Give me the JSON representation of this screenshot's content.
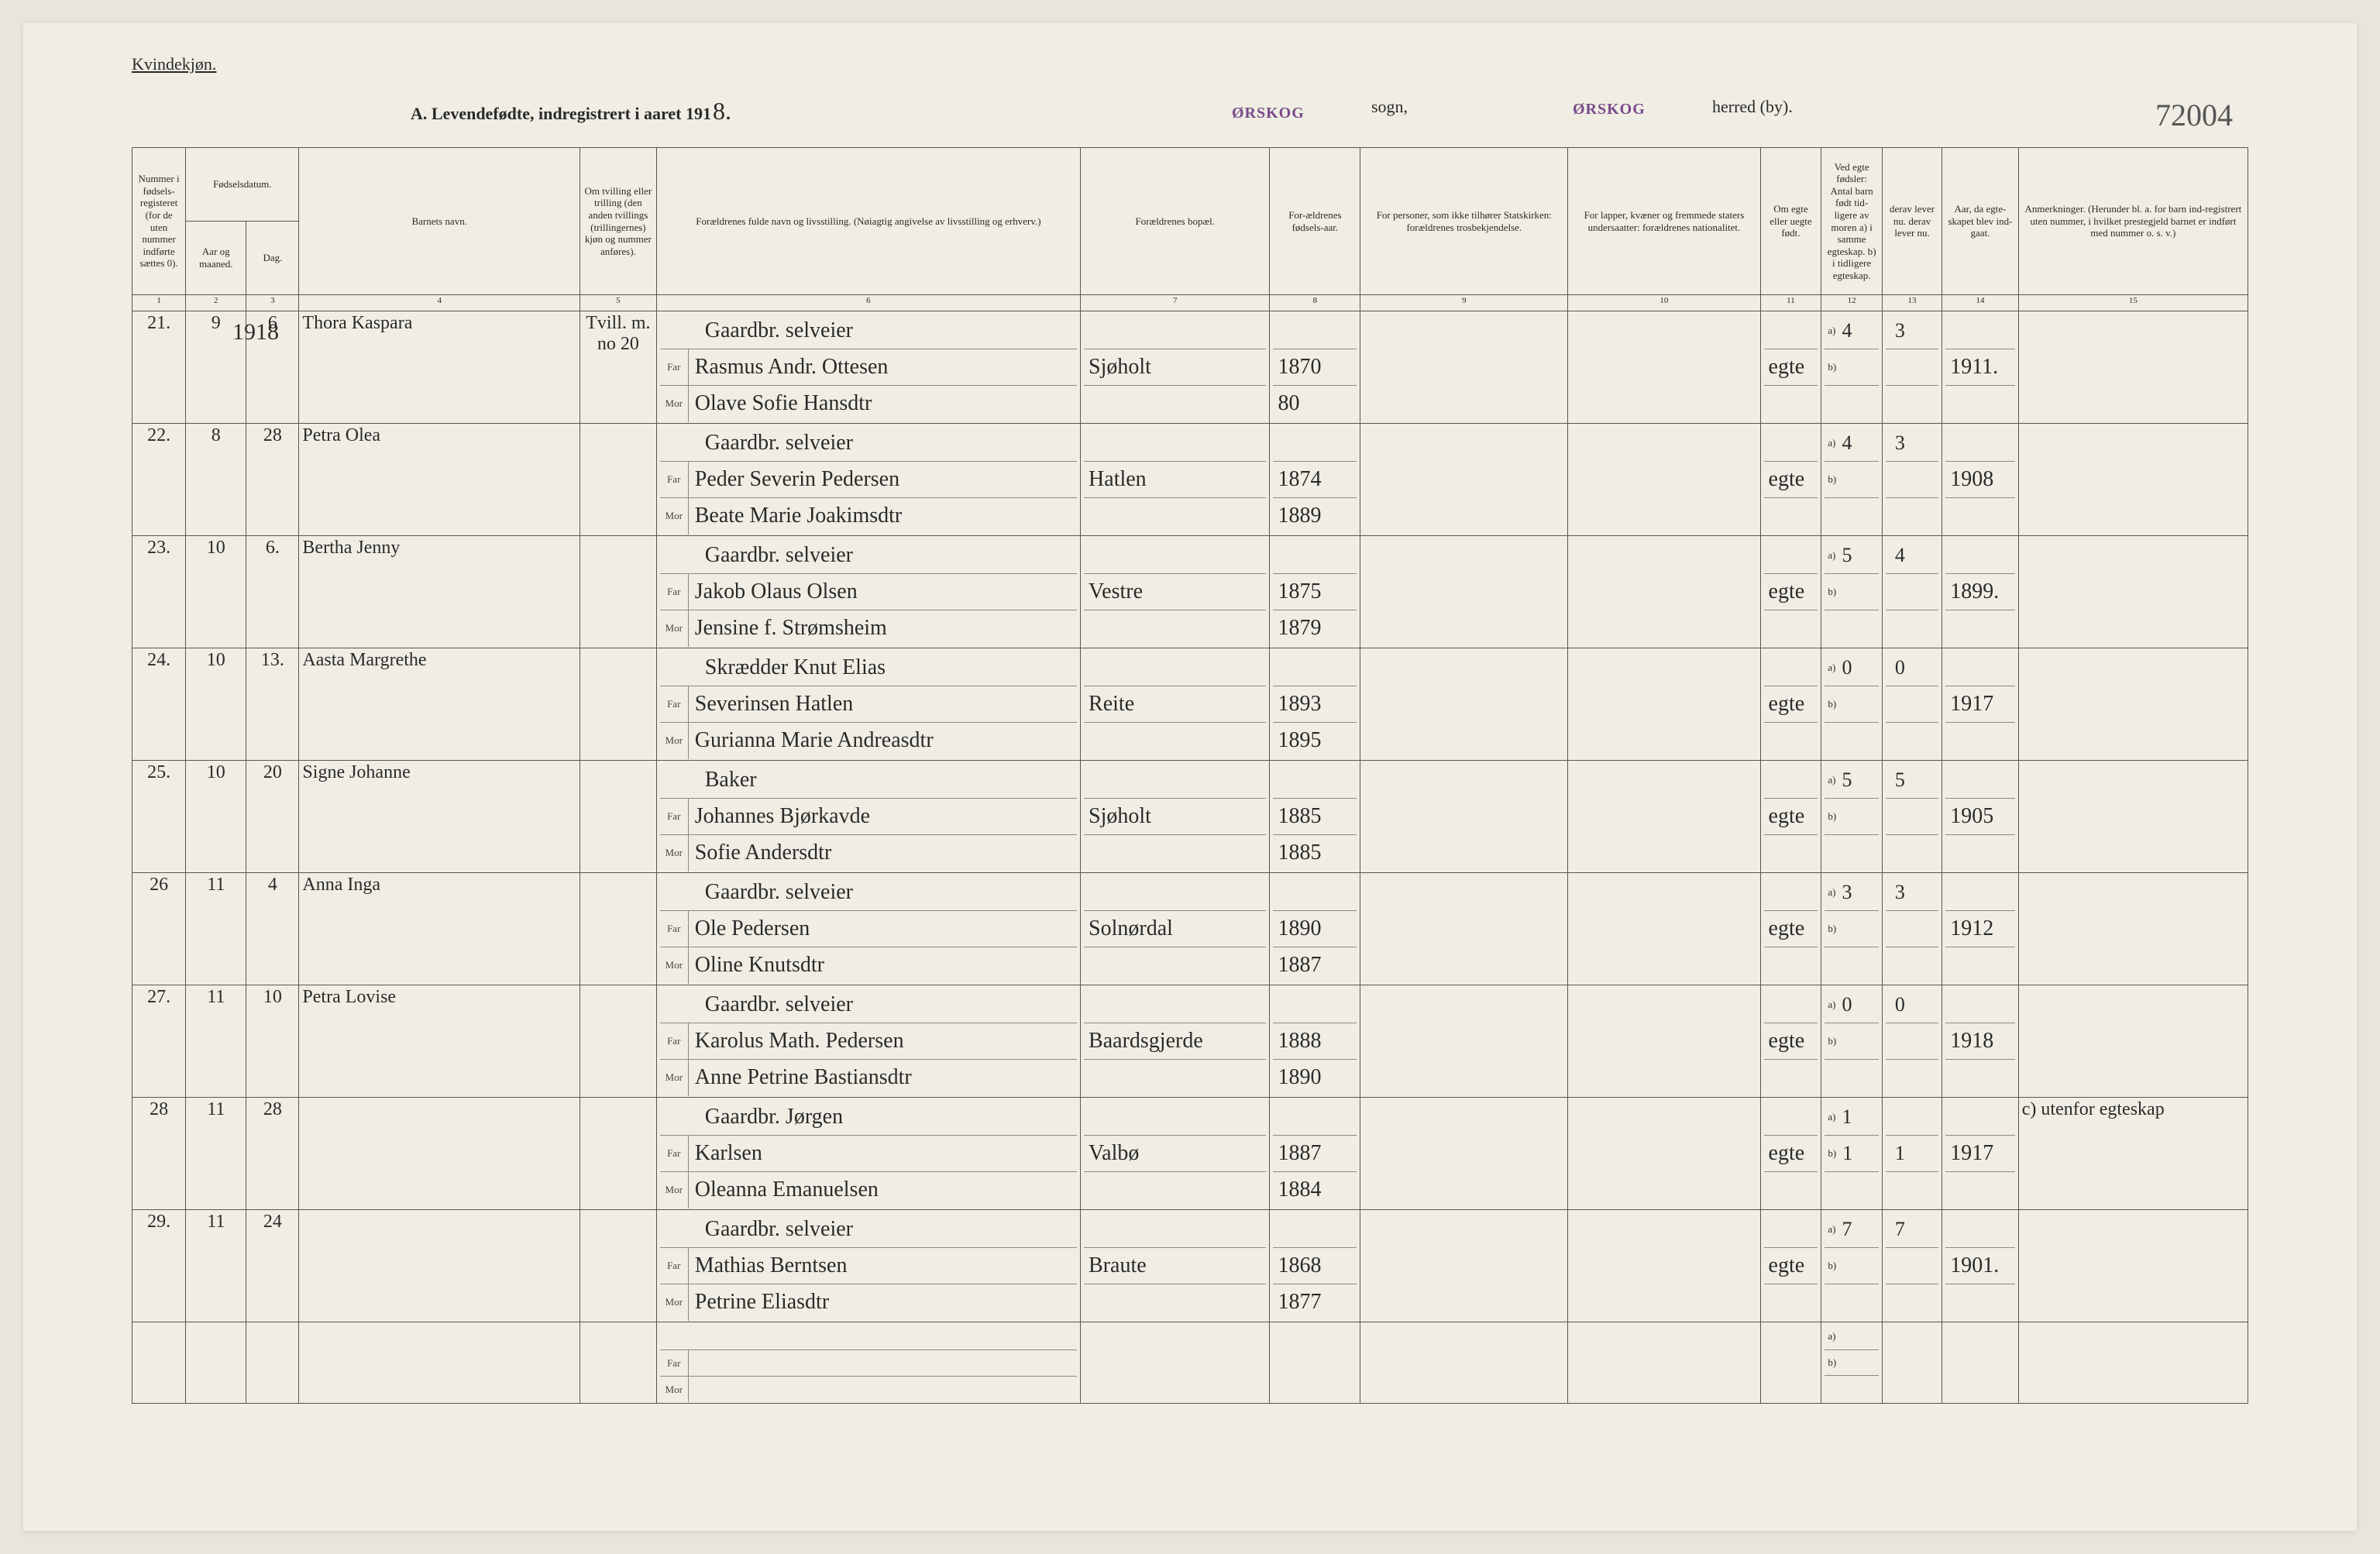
{
  "header": {
    "gender_label": "Kvindekjøn.",
    "title_prefix": "A.  Levendefødte, indregistrert i aaret 191",
    "year_suffix": "8.",
    "sogn_stamp": "ØRSKOG",
    "sogn_label": "sogn,",
    "herred_stamp": "ØRSKOG",
    "herred_label": "herred (by).",
    "page_number": "72004"
  },
  "columns": {
    "c1": "Nummer i fødsels-registeret (for de uten nummer indførte sættes 0).",
    "c2": "Fødselsdatum.",
    "c2a": "Aar og maaned.",
    "c2b": "Dag.",
    "c4": "Barnets navn.",
    "c5": "Om tvilling eller trilling (den anden tvillings (trillingernes) kjøn og nummer anføres).",
    "c6": "Forældrenes fulde navn og livsstilling. (Nøiagtig angivelse av livsstilling og erhverv.)",
    "c7": "Forældrenes bopæl.",
    "c8": "For-ældrenes fødsels-aar.",
    "c9": "For personer, som ikke tilhører Statskirken: forældrenes trosbekjendelse.",
    "c10": "For lapper, kvæner og fremmede staters undersaatter: forældrenes nationalitet.",
    "c11": "Om egte eller uegte født.",
    "c12": "Ved egte fødsler: Antal barn født tid-ligere av moren a) i samme egteskap. b) i tidligere egteskap.",
    "c13": "derav lever nu. derav lever nu.",
    "c14": "Aar, da egte-skapet blev ind-gaat.",
    "c15": "Anmerkninger. (Herunder bl. a. for barn ind-registrert uten nummer, i hvilket prestegjeld barnet er indført med nummer o. s. v.)",
    "far_label": "Far",
    "mor_label": "Mor",
    "a_label": "a)",
    "b_label": "b)",
    "nums": [
      "1",
      "2",
      "3",
      "4",
      "5",
      "6",
      "7",
      "8",
      "9",
      "10",
      "11",
      "12",
      "13",
      "14",
      "15"
    ]
  },
  "year_1918": "1918",
  "rows": [
    {
      "num": "21.",
      "month": "9",
      "day": "6",
      "name": "Thora Kaspara",
      "twill": "Tvill. m. no 20",
      "occ": "Gaardbr. selveier",
      "far": "Rasmus Andr. Ottesen",
      "mor": "Olave Sofie Hansdtr",
      "bopael": "Sjøholt",
      "far_year": "1870",
      "mor_year": "80",
      "egte": "egte",
      "born_a": "4",
      "live_a": "3",
      "married": "1911."
    },
    {
      "num": "22.",
      "month": "8",
      "day": "28",
      "name": "Petra Olea",
      "occ": "Gaardbr. selveier",
      "far": "Peder Severin Pedersen",
      "mor": "Beate Marie Joakimsdtr",
      "bopael": "Hatlen",
      "far_year": "1874",
      "mor_year": "1889",
      "egte": "egte",
      "born_a": "4",
      "live_a": "3",
      "married": "1908"
    },
    {
      "num": "23.",
      "month": "10",
      "day": "6.",
      "name": "Bertha Jenny",
      "occ": "Gaardbr. selveier",
      "far": "Jakob Olaus Olsen",
      "mor": "Jensine f. Strømsheim",
      "bopael": "Vestre",
      "far_year": "1875",
      "mor_year": "1879",
      "egte": "egte",
      "born_a": "5",
      "live_a": "4",
      "married": "1899."
    },
    {
      "num": "24.",
      "month": "10",
      "day": "13.",
      "name": "Aasta Margrethe",
      "occ": "Skrædder  Knut Elias",
      "far": "Severinsen Hatlen",
      "mor": "Gurianna Marie Andreasdtr",
      "bopael": "Reite",
      "far_year": "1893",
      "mor_year": "1895",
      "egte": "egte",
      "born_a": "0",
      "live_a": "0",
      "married": "1917"
    },
    {
      "num": "25.",
      "month": "10",
      "day": "20",
      "name": "Signe Johanne",
      "occ": "Baker",
      "far": "Johannes Bjørkavde",
      "mor": "Sofie Andersdtr",
      "bopael": "Sjøholt",
      "far_year": "1885",
      "mor_year": "1885",
      "egte": "egte",
      "born_a": "5",
      "live_a": "5",
      "married": "1905"
    },
    {
      "num": "26",
      "month": "11",
      "day": "4",
      "name": "Anna Inga",
      "occ": "Gaardbr. selveier",
      "far": "Ole Pedersen",
      "mor": "Oline Knutsdtr",
      "bopael": "Solnørdal",
      "far_year": "1890",
      "mor_year": "1887",
      "egte": "egte",
      "born_a": "3",
      "live_a": "3",
      "married": "1912"
    },
    {
      "num": "27.",
      "month": "11",
      "day": "10",
      "name": "Petra Lovise",
      "occ": "Gaardbr. selveier",
      "far": "Karolus Math. Pedersen",
      "mor": "Anne Petrine Bastiansdtr",
      "bopael": "Baardsgjerde",
      "far_year": "1888",
      "mor_year": "1890",
      "egte": "egte",
      "born_a": "0",
      "live_a": "0",
      "married": "1918"
    },
    {
      "num": "28",
      "month": "11",
      "day": "28",
      "name": "",
      "occ": "Gaardbr. Jørgen",
      "far": "Karlsen",
      "mor": "Oleanna Emanuelsen",
      "bopael": "Valbø",
      "far_year": "1887",
      "mor_year": "1884",
      "egte": "egte",
      "born_a": "1",
      "live_a": "",
      "born_b": "1",
      "live_b": "1",
      "married": "1917",
      "remark": "c) utenfor egteskap"
    },
    {
      "num": "29.",
      "month": "11",
      "day": "24",
      "name": "",
      "occ": "Gaardbr. selveier",
      "far": "Mathias Berntsen",
      "mor": "Petrine Eliasdtr",
      "bopael": "Braute",
      "far_year": "1868",
      "mor_year": "1877",
      "egte": "egte",
      "born_a": "7",
      "live_a": "7",
      "married": "1901."
    }
  ],
  "widths": {
    "c1": 70,
    "c2a": 80,
    "c2b": 70,
    "c4": 380,
    "c5": 100,
    "c6": 560,
    "c7": 250,
    "c8": 120,
    "c9": 280,
    "c10": 260,
    "c11": 80,
    "c12": 80,
    "c13": 80,
    "c14": 100,
    "c15": 310
  },
  "colors": {
    "paper": "#f0eee4",
    "ink": "#2a2a2a",
    "stamp": "#7a4a8a",
    "rule": "#555555",
    "light_rule": "#888888"
  }
}
